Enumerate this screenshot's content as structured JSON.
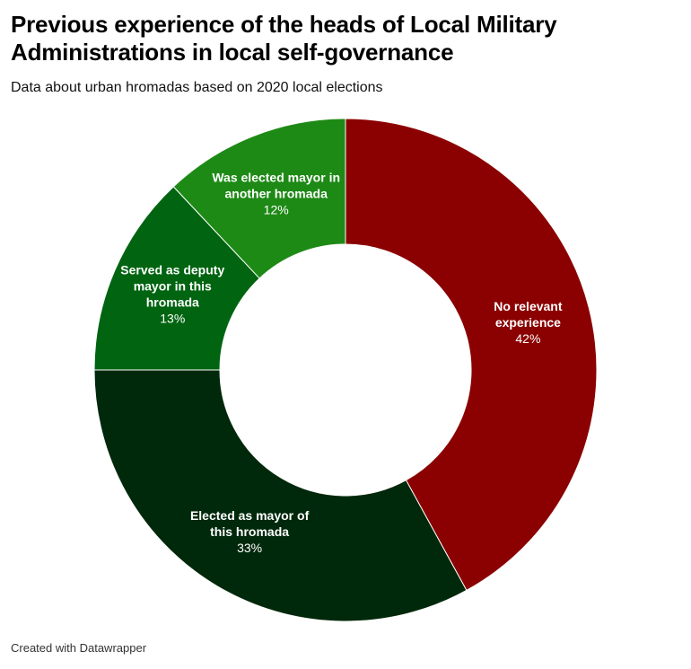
{
  "chart_data": {
    "type": "pie",
    "title": "Previous experience of the heads of Local Military Administrations in local self-governance",
    "subtitle": "Data about urban hromadas based on 2020 local elections",
    "slices": [
      {
        "label": "No relevant experience",
        "value": 42,
        "value_label": "42%",
        "color": "#8b0000"
      },
      {
        "label": "Elected as mayor of this hromada",
        "value": 33,
        "value_label": "33%",
        "color": "#00280a"
      },
      {
        "label": "Served as deputy mayor in this hromada",
        "value": 13,
        "value_label": "13%",
        "color": "#006410"
      },
      {
        "label": "Was elected mayor in another hromada",
        "value": 12,
        "value_label": "12%",
        "color": "#1e8a16"
      }
    ]
  },
  "footer": "Created with Datawrapper"
}
